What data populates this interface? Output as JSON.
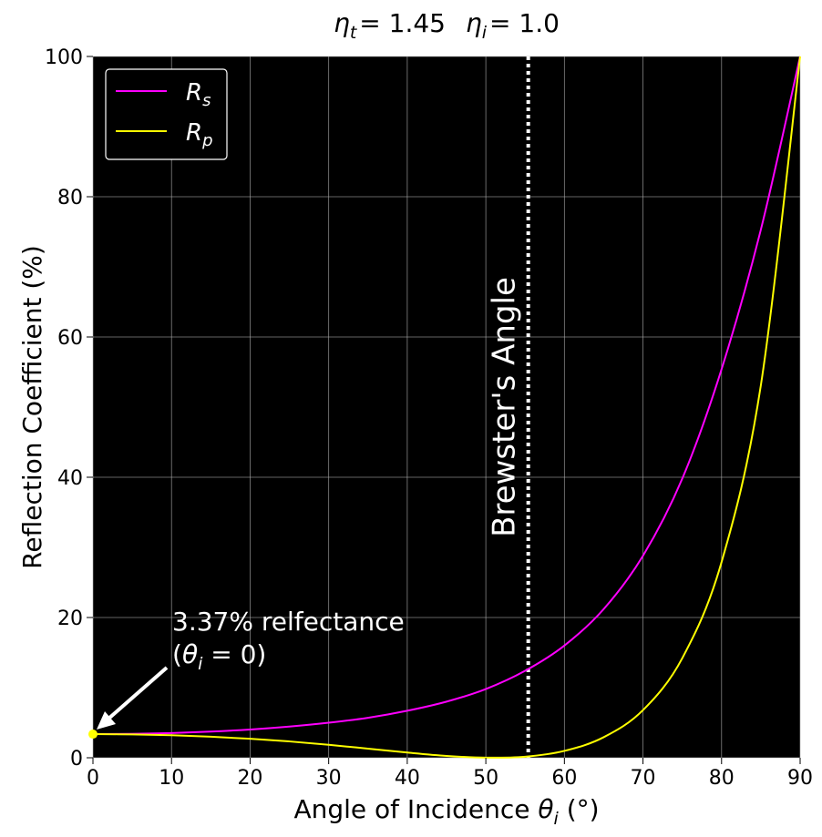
{
  "chart_data": {
    "type": "line",
    "title": {
      "eta_t_symbol": "η",
      "eta_t_sub": "t",
      "eta_t_value": "= 1.45",
      "eta_i_symbol": "η",
      "eta_i_sub": "i",
      "eta_i_value": "= 1.0"
    },
    "xlabel": {
      "prefix": "Angle of Incidence ",
      "symbol": "θ",
      "sub": "i",
      "suffix": " (°)"
    },
    "ylabel": "Reflection Coefficient (%)",
    "xlim": [
      0,
      90
    ],
    "ylim": [
      0,
      100
    ],
    "xticks": [
      0,
      10,
      20,
      30,
      40,
      50,
      60,
      70,
      80,
      90
    ],
    "yticks": [
      0,
      20,
      40,
      60,
      80,
      100
    ],
    "grid": true,
    "background": "#000000",
    "legend": {
      "placement": "top-left",
      "entries": [
        {
          "symbol": "R",
          "sub": "s",
          "color": "#ff00ff"
        },
        {
          "symbol": "R",
          "sub": "p",
          "color": "#ffff00"
        }
      ]
    },
    "series": [
      {
        "color": "#ff00ff",
        "x": [
          0,
          5,
          10,
          15,
          20,
          25,
          30,
          35,
          40,
          45,
          50,
          55,
          60,
          65,
          70,
          75,
          80,
          85,
          90
        ],
        "y": [
          3.37,
          3.41,
          3.53,
          3.73,
          4.03,
          4.45,
          5.0,
          5.7,
          6.7,
          8.0,
          9.8,
          12.4,
          16.0,
          21.2,
          28.8,
          39.8,
          55.4,
          75.3,
          100
        ]
      },
      {
        "color": "#ffff00",
        "x": [
          0,
          5,
          10,
          15,
          20,
          25,
          30,
          35,
          40,
          45,
          50,
          55,
          60,
          65,
          70,
          75,
          80,
          85,
          90
        ],
        "y": [
          3.37,
          3.33,
          3.21,
          3.0,
          2.71,
          2.33,
          1.85,
          1.3,
          0.74,
          0.26,
          0.01,
          0.15,
          0.98,
          2.93,
          6.79,
          14.2,
          27.9,
          53.1,
          100
        ]
      }
    ],
    "annotations": {
      "brewster": {
        "x": 55.4,
        "label": "Brewster's Angle",
        "color": "#ffffff"
      },
      "normal_incidence": {
        "point_x": 0,
        "point_y": 3.37,
        "point_color": "#ffff00",
        "line1": "3.37% relfectance",
        "line2_open": "(",
        "line2_symbol": "θ",
        "line2_sub": "i",
        "line2_rest": " = 0)"
      }
    }
  }
}
